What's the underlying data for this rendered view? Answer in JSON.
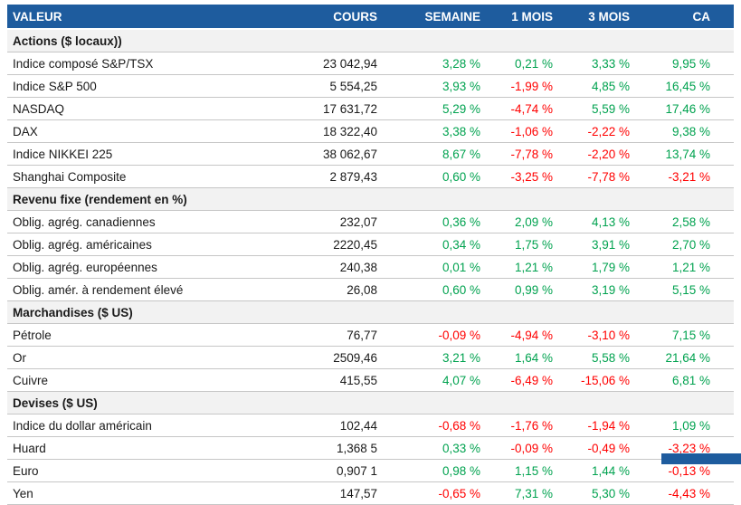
{
  "colors": {
    "header_bg": "#1E5C9E",
    "header_text": "#FFFFFF",
    "section_bg": "#F2F2F2",
    "positive": "#00A24F",
    "negative": "#FF0000",
    "body_text": "#1A1A1A",
    "grid_line": "#C6C6C6"
  },
  "table": {
    "columns": [
      {
        "key": "valeur",
        "label": "VALEUR"
      },
      {
        "key": "cours",
        "label": "COURS"
      },
      {
        "key": "semaine",
        "label": "SEMAINE"
      },
      {
        "key": "mois-1",
        "label": "1 MOIS"
      },
      {
        "key": "mois-3",
        "label": "3 MOIS"
      },
      {
        "key": "ca",
        "label": "CA"
      }
    ],
    "sections": [
      {
        "title": "Actions ($ locaux))",
        "rows": [
          {
            "label": "Indice composé S&P/TSX",
            "cours": "23 042,94",
            "values": [
              "3,28 %",
              "0,21 %",
              "3,33 %",
              "9,95 %"
            ]
          },
          {
            "label": "Indice S&P 500",
            "cours": "5 554,25",
            "values": [
              "3,93 %",
              "-1,99 %",
              "4,85 %",
              "16,45 %"
            ]
          },
          {
            "label": "NASDAQ",
            "cours": "17 631,72",
            "values": [
              "5,29 %",
              "-4,74 %",
              "5,59 %",
              "17,46 %"
            ]
          },
          {
            "label": "DAX",
            "cours": "18 322,40",
            "values": [
              "3,38 %",
              "-1,06 %",
              "-2,22 %",
              "9,38 %"
            ]
          },
          {
            "label": "Indice NIKKEI 225",
            "cours": "38 062,67",
            "values": [
              "8,67 %",
              "-7,78 %",
              "-2,20 %",
              "13,74 %"
            ]
          },
          {
            "label": "Shanghai Composite",
            "cours": "2 879,43",
            "values": [
              "0,60 %",
              "-3,25 %",
              "-7,78 %",
              "-3,21 %"
            ]
          }
        ]
      },
      {
        "title": "Revenu fixe (rendement en %)",
        "rows": [
          {
            "label": "Oblig. agrég. canadiennes",
            "cours": "232,07",
            "values": [
              "0,36 %",
              "2,09 %",
              "4,13 %",
              "2,58 %"
            ]
          },
          {
            "label": "Oblig. agrég. américaines",
            "cours": "2220,45",
            "values": [
              "0,34 %",
              "1,75 %",
              "3,91 %",
              "2,70 %"
            ]
          },
          {
            "label": "Oblig. agrég. européennes",
            "cours": "240,38",
            "values": [
              "0,01 %",
              "1,21 %",
              "1,79 %",
              "1,21 %"
            ]
          },
          {
            "label": "Oblig. amér. à rendement élevé",
            "cours": "26,08",
            "values": [
              "0,60 %",
              "0,99 %",
              "3,19 %",
              "5,15 %"
            ]
          }
        ]
      },
      {
        "title": "Marchandises ($ US)",
        "rows": [
          {
            "label": "Pétrole",
            "cours": "76,77",
            "values": [
              "-0,09 %",
              "-4,94 %",
              "-3,10 %",
              "7,15 %"
            ]
          },
          {
            "label": "Or",
            "cours": "2509,46",
            "values": [
              "3,21 %",
              "1,64 %",
              "5,58 %",
              "21,64 %"
            ]
          },
          {
            "label": "Cuivre",
            "cours": "415,55",
            "values": [
              "4,07 %",
              "-6,49 %",
              "-15,06 %",
              "6,81 %"
            ]
          }
        ]
      },
      {
        "title": "Devises ($ US)",
        "rows": [
          {
            "label": "Indice du dollar américain",
            "cours": "102,44",
            "values": [
              "-0,68 %",
              "-1,76 %",
              "-1,94 %",
              "1,09 %"
            ]
          },
          {
            "label": "Huard",
            "cours": "1,368 5",
            "values": [
              "0,33 %",
              "-0,09 %",
              "-0,49 %",
              "-3,23 %"
            ]
          },
          {
            "label": "Euro",
            "cours": "0,907 1",
            "values": [
              "0,98 %",
              "1,15 %",
              "1,44 %",
              "-0,13 %"
            ]
          },
          {
            "label": "Yen",
            "cours": "147,57",
            "values": [
              "-0,65 %",
              "7,31 %",
              "5,30 %",
              "-4,43 %"
            ]
          }
        ]
      }
    ]
  }
}
